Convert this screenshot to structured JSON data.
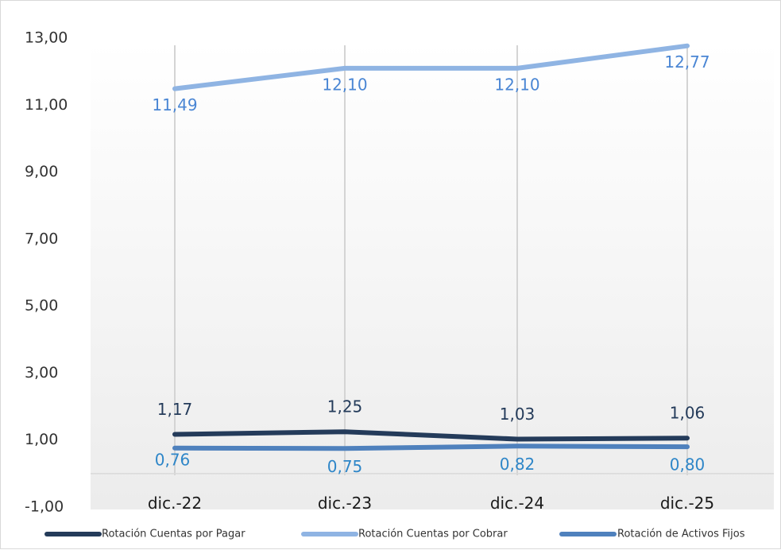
{
  "chart_data": {
    "type": "line",
    "categories": [
      "dic.-22",
      "dic.-23",
      "dic.-24",
      "dic.-25"
    ],
    "y_ticks": [
      "13,00",
      "11,00",
      "9,00",
      "7,00",
      "5,00",
      "3,00",
      "1,00",
      "-1,00"
    ],
    "ylim": [
      -1,
      13
    ],
    "grid": "vertical lines at categories",
    "legend_position": "bottom",
    "series": [
      {
        "name": "Rotación Cuentas por Pagar",
        "values": [
          1.17,
          1.25,
          1.03,
          1.06
        ],
        "labels": [
          "1,17",
          "1,25",
          "1,03",
          "1,06"
        ],
        "color": "#243b5a",
        "label_color": "#243b5a"
      },
      {
        "name": "Rotación Cuentas por Cobrar",
        "values": [
          11.49,
          12.1,
          12.1,
          12.77
        ],
        "labels": [
          "11,49",
          "12,10",
          "12,10",
          "12,77"
        ],
        "color": "#8fb4e3",
        "label_color": "#4a86d4"
      },
      {
        "name": "Rotación de Activos Fijos",
        "values": [
          0.76,
          0.75,
          0.82,
          0.8
        ],
        "labels": [
          "0,76",
          "0,75",
          "0,82",
          "0,80"
        ],
        "color": "#4f81bd",
        "label_color": "#2e86c8"
      }
    ]
  }
}
